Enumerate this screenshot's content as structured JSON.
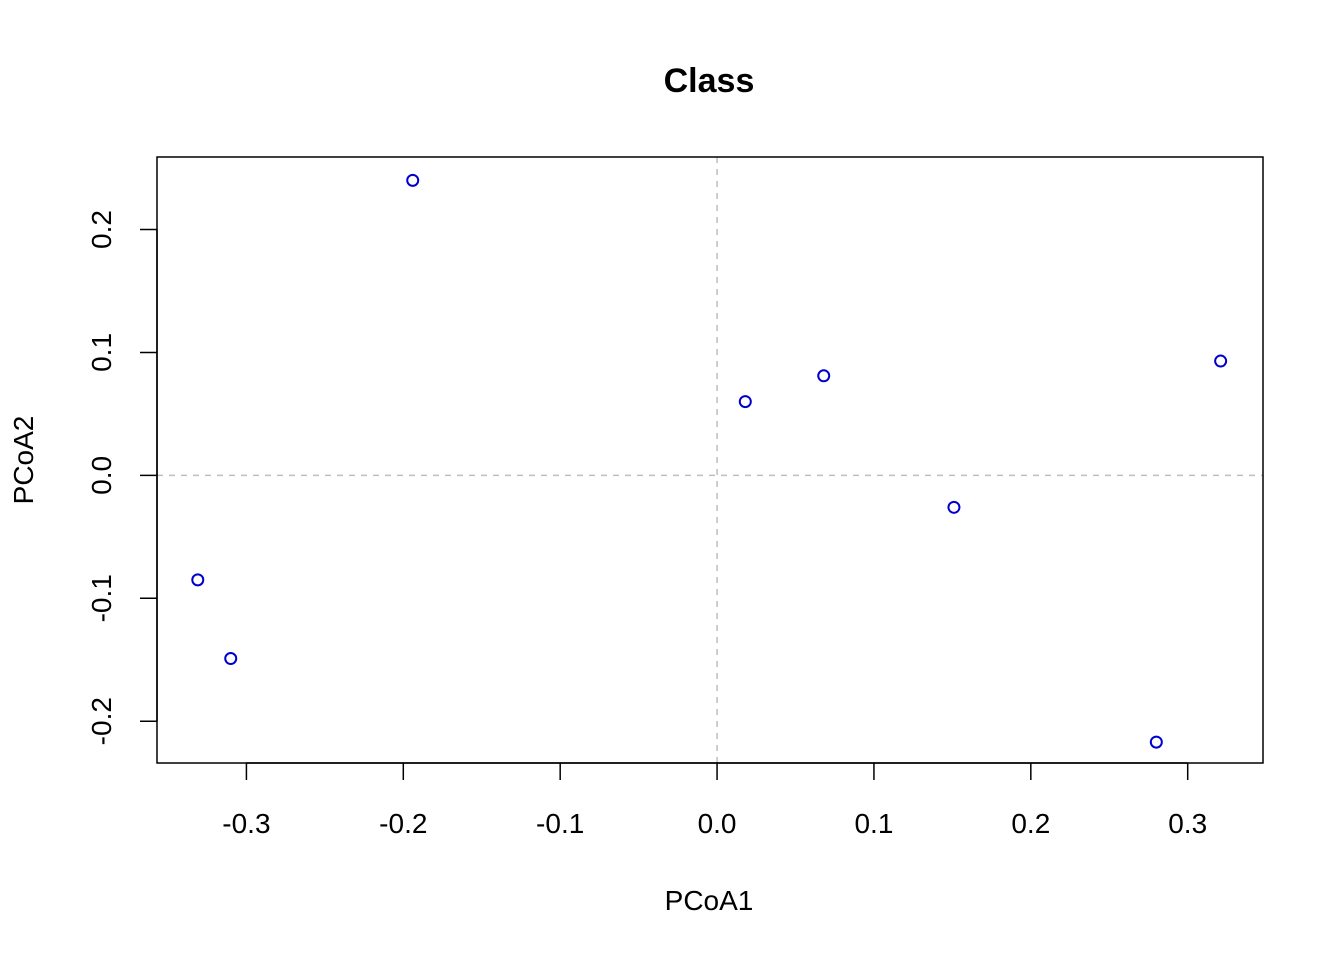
{
  "chart_data": {
    "type": "scatter",
    "title": "Class",
    "xlabel": "PCoA1",
    "ylabel": "PCoA2",
    "xlim": [
      -0.357,
      0.348
    ],
    "ylim": [
      -0.234,
      0.259
    ],
    "x_ticks": [
      -0.3,
      -0.2,
      -0.1,
      0.0,
      0.1,
      0.2,
      0.3
    ],
    "x_tick_labels": [
      "-0.3",
      "-0.2",
      "-0.1",
      "0.0",
      "0.1",
      "0.2",
      "0.3"
    ],
    "y_ticks": [
      -0.2,
      -0.1,
      0.0,
      0.1,
      0.2
    ],
    "y_tick_labels": [
      "-0.2",
      "-0.1",
      "0.0",
      "0.1",
      "0.2"
    ],
    "reference_lines": {
      "x": 0.0,
      "y": 0.0,
      "style": "dashed",
      "color": "#bebebe"
    },
    "grid": false,
    "point_color": "#0000cd",
    "marker": "open-circle",
    "series": [
      {
        "points": [
          {
            "x": -0.194,
            "y": 0.24
          },
          {
            "x": -0.331,
            "y": -0.085
          },
          {
            "x": -0.31,
            "y": -0.149
          },
          {
            "x": 0.018,
            "y": 0.06
          },
          {
            "x": 0.068,
            "y": 0.081
          },
          {
            "x": 0.151,
            "y": -0.026
          },
          {
            "x": 0.28,
            "y": -0.217
          },
          {
            "x": 0.321,
            "y": 0.093
          }
        ]
      }
    ]
  }
}
